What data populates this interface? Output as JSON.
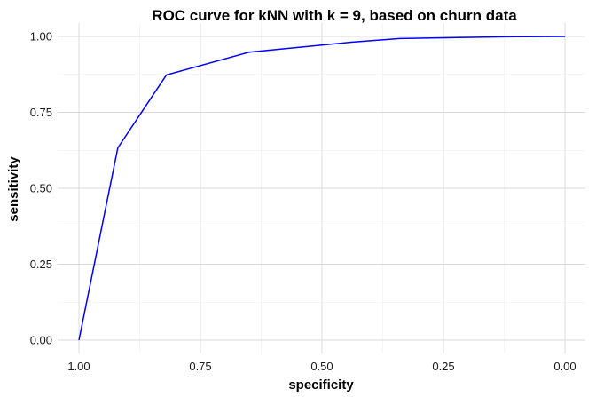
{
  "chart_data": {
    "type": "line",
    "title": "ROC curve for kNN with k = 9, based on churn data",
    "xlabel": "specificity",
    "ylabel": "sensitivity",
    "xlim": [
      1.0,
      0.0
    ],
    "ylim": [
      0.0,
      1.0
    ],
    "x_reversed": true,
    "grid": true,
    "x_ticks": [
      {
        "value": 1.0,
        "label": "1.00"
      },
      {
        "value": 0.75,
        "label": "0.75"
      },
      {
        "value": 0.5,
        "label": "0.50"
      },
      {
        "value": 0.25,
        "label": "0.25"
      },
      {
        "value": 0.0,
        "label": "0.00"
      }
    ],
    "y_ticks": [
      {
        "value": 0.0,
        "label": "0.00"
      },
      {
        "value": 0.25,
        "label": "0.25"
      },
      {
        "value": 0.5,
        "label": "0.50"
      },
      {
        "value": 0.75,
        "label": "0.75"
      },
      {
        "value": 1.0,
        "label": "1.00"
      }
    ],
    "series": [
      {
        "color": "#0000ff",
        "x": [
          1.0,
          0.92,
          0.82,
          0.65,
          0.44,
          0.34,
          0.12,
          0.0
        ],
        "y": [
          0.0,
          0.633,
          0.873,
          0.948,
          0.981,
          0.993,
          0.999,
          1.0
        ]
      }
    ]
  }
}
